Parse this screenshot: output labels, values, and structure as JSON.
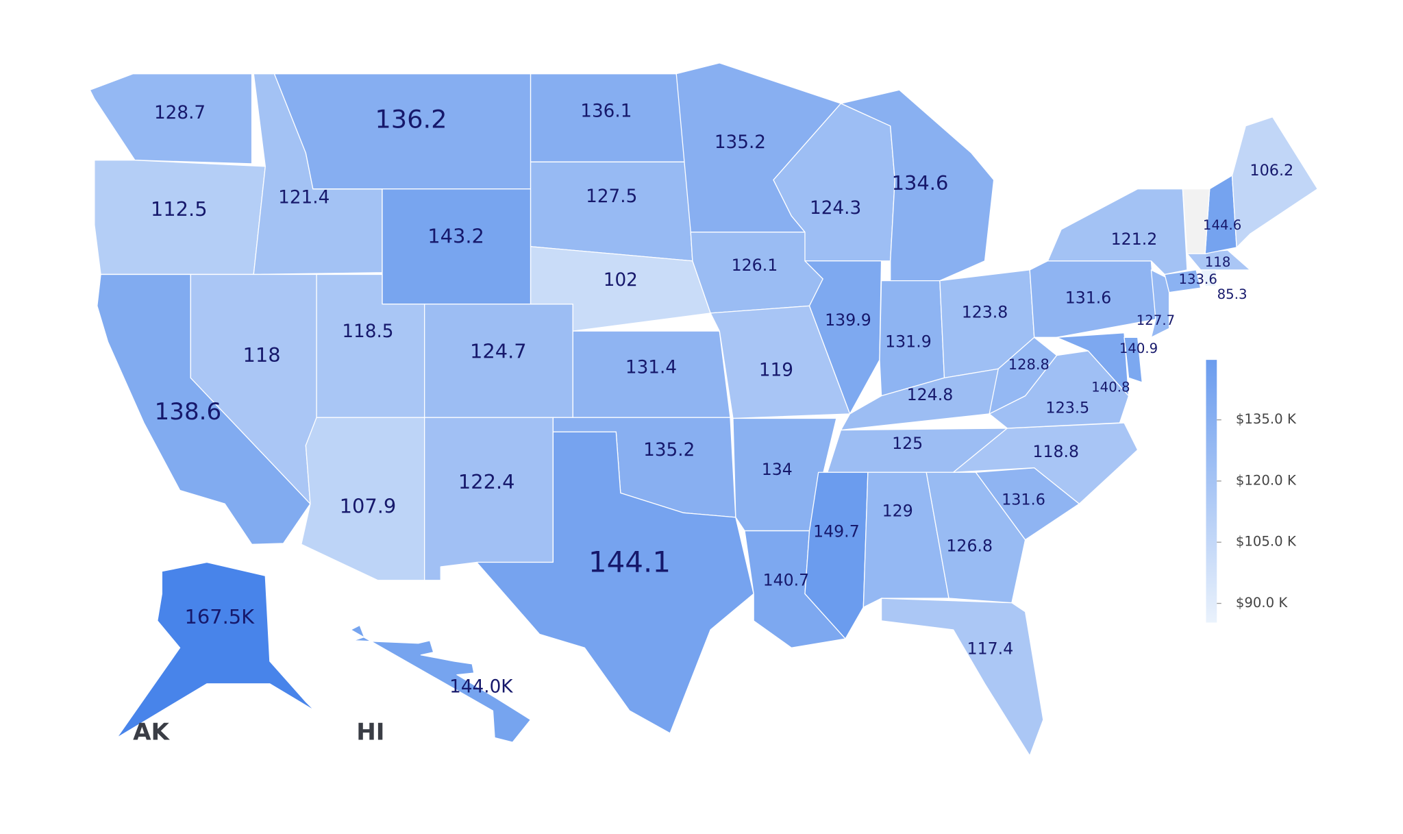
{
  "map": {
    "regions": [
      {
        "value": 128.7
      },
      {
        "value": 112.5
      },
      {
        "value": 138.6
      },
      {
        "value": 121.4
      },
      {
        "value": 118.0
      },
      {
        "value": 136.2
      },
      {
        "value": 143.2
      },
      {
        "value": 118.5
      },
      {
        "value": 107.9
      },
      {
        "value": 124.7
      },
      {
        "value": 122.4
      },
      {
        "value": 136.1
      },
      {
        "value": 127.5
      },
      {
        "value": 102.0
      },
      {
        "value": 131.4
      },
      {
        "value": 135.2
      },
      {
        "value": 144.1
      },
      {
        "value": 135.2
      },
      {
        "value": 126.1
      },
      {
        "value": 119.0
      },
      {
        "value": 134.0
      },
      {
        "value": 140.7
      },
      {
        "value": 124.3
      },
      {
        "value": 139.9
      },
      {
        "value": 134.6
      },
      {
        "value": 131.9
      },
      {
        "value": 123.8
      },
      {
        "value": 124.8
      },
      {
        "value": 125.0
      },
      {
        "value": 149.7
      },
      {
        "value": 129.0
      },
      {
        "value": 126.8
      },
      {
        "value": 117.4
      },
      {
        "value": 131.6
      },
      {
        "value": 118.8
      },
      {
        "value": 123.5
      },
      {
        "value": 128.8
      },
      {
        "value": 131.6
      },
      {
        "value": 140.8
      },
      {
        "value": 140.9
      },
      {
        "value": 127.7
      },
      {
        "value": 121.2
      },
      {
        "value": 133.6
      },
      {
        "value": 118.0
      },
      {
        "value": 85.3
      },
      {
        "value": 144.6
      },
      {
        "value": 106.2
      },
      {
        "value": 167.5,
        "value_label": "167.5K"
      },
      {
        "value": 144.0,
        "value_label": "144.0K"
      }
    ],
    "inset_labels": [
      "AK",
      "HI"
    ],
    "colorscale": {
      "range": [
        85.3,
        149.7
      ],
      "colors": [
        "#eaf2fc",
        "#6b9cee"
      ],
      "ticks": [
        {
          "value": 135,
          "label": "$135.0 K"
        },
        {
          "value": 120,
          "label": "$120.0 K"
        },
        {
          "value": 105,
          "label": "$105.0 K"
        },
        {
          "value": 90,
          "label": "$90.0 K"
        }
      ]
    }
  }
}
